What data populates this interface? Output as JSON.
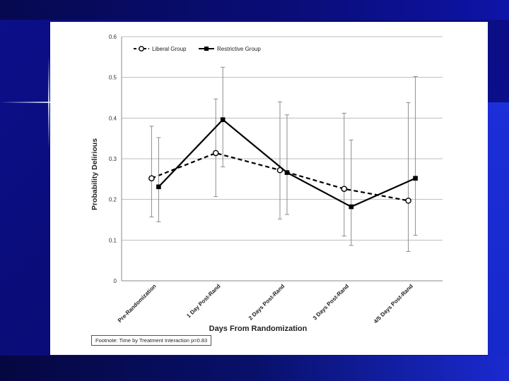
{
  "chart_data": {
    "type": "line",
    "categories": [
      "Pre-Randomization",
      "1 Day Post-Rand",
      "2 Days Post-Rand",
      "3 Days Post-Rand",
      "4/5 Days Post-Rand"
    ],
    "xlabel": "Days From Randomization",
    "ylabel": "Probability Delirious",
    "ylim": [
      0,
      0.6
    ],
    "yticks": [
      0,
      0.1,
      0.2,
      0.3,
      0.4,
      0.5,
      0.6
    ],
    "ytick_labels": [
      "0",
      "0.1",
      "0.2",
      "0.3",
      "0.4",
      "0.5",
      "0.6"
    ],
    "grid": true,
    "legend_position": "top-left",
    "series": [
      {
        "name": "Liberal Group",
        "style": "dashed",
        "marker": "open-circle",
        "color": "#000000",
        "values": [
          0.252,
          0.314,
          0.272,
          0.226,
          0.197
        ],
        "lower": [
          0.157,
          0.207,
          0.152,
          0.11,
          0.072
        ],
        "upper": [
          0.38,
          0.447,
          0.44,
          0.412,
          0.438
        ]
      },
      {
        "name": "Restrictive Group",
        "style": "solid",
        "marker": "filled-square",
        "color": "#000000",
        "values": [
          0.231,
          0.396,
          0.266,
          0.182,
          0.252
        ],
        "lower": [
          0.145,
          0.28,
          0.163,
          0.087,
          0.112
        ],
        "upper": [
          0.352,
          0.525,
          0.408,
          0.346,
          0.502
        ]
      }
    ]
  },
  "footnote": "Footnote: Time by Treatment Interaction p=0.83"
}
